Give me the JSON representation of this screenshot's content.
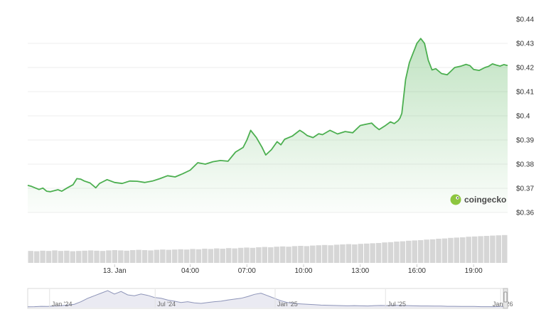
{
  "watermark": {
    "text": "coingecko",
    "icon": "gecko-logo-icon",
    "icon_color": "#8dc63f"
  },
  "colors": {
    "line": "#4caf50",
    "area": "#4caf50",
    "volume": "#d6d6d6",
    "grid": "#eeeeee",
    "navigator_line": "#8d94b8",
    "navigator_fill": "#eaeaf2"
  },
  "chart_data": {
    "type": "area",
    "y_unit": "$",
    "ylim": [
      0.36,
      0.44
    ],
    "y_ticks": [
      "$0.44",
      "$0.43",
      "$0.42",
      "$0.41",
      "$0.4",
      "$0.39",
      "$0.38",
      "$0.37",
      "$0.36"
    ],
    "x_range_hours": [
      -4.6,
      20.8
    ],
    "x_tick_labels": [
      "13. Jan",
      "04:00",
      "07:00",
      "10:00",
      "13:00",
      "16:00",
      "19:00"
    ],
    "x_tick_hours": [
      0,
      4,
      7,
      10,
      13,
      16,
      19
    ],
    "series": [
      {
        "x_hours": [
          -4.6,
          -4.4,
          -4.0,
          -3.8,
          -3.6,
          -3.4,
          -3.2,
          -3.0,
          -2.8,
          -2.5,
          -2.2,
          -2.0,
          -1.8,
          -1.6,
          -1.3,
          -1.0,
          -0.8,
          -0.6,
          -0.4,
          0.0,
          0.4,
          0.8,
          1.2,
          1.6,
          2.0,
          2.4,
          2.8,
          3.2,
          3.6,
          4.0,
          4.4,
          4.8,
          5.2,
          5.6,
          6.0,
          6.4,
          6.8,
          7.0,
          7.2,
          7.5,
          7.8,
          8.0,
          8.3,
          8.6,
          8.8,
          9.0,
          9.4,
          9.8,
          10.0,
          10.2,
          10.5,
          10.8,
          11.0,
          11.4,
          11.8,
          12.2,
          12.6,
          13.0,
          13.3,
          13.6,
          13.8,
          14.0,
          14.3,
          14.6,
          14.8,
          15.0,
          15.1,
          15.2,
          15.4,
          15.6,
          15.8,
          15.9,
          16.0,
          16.2,
          16.4,
          16.6,
          16.8,
          17.0,
          17.3,
          17.6,
          17.8,
          18.0,
          18.3,
          18.6,
          18.8,
          19.0,
          19.3,
          19.6,
          19.8,
          20.0,
          20.2,
          20.4,
          20.6,
          20.8
        ],
        "values": [
          0.3712,
          0.3708,
          0.3695,
          0.3701,
          0.3688,
          0.3686,
          0.369,
          0.3694,
          0.3688,
          0.3702,
          0.3715,
          0.374,
          0.3738,
          0.373,
          0.3722,
          0.3702,
          0.372,
          0.3728,
          0.3736,
          0.3724,
          0.372,
          0.373,
          0.3729,
          0.3724,
          0.373,
          0.374,
          0.3752,
          0.3747,
          0.376,
          0.3775,
          0.3806,
          0.38,
          0.381,
          0.3815,
          0.3812,
          0.385,
          0.3869,
          0.39,
          0.394,
          0.391,
          0.387,
          0.3838,
          0.386,
          0.3893,
          0.388,
          0.3903,
          0.3916,
          0.394,
          0.393,
          0.3918,
          0.391,
          0.3926,
          0.3922,
          0.394,
          0.3925,
          0.3935,
          0.393,
          0.396,
          0.3965,
          0.397,
          0.3955,
          0.3943,
          0.3958,
          0.3975,
          0.3968,
          0.398,
          0.399,
          0.401,
          0.415,
          0.422,
          0.426,
          0.428,
          0.43,
          0.432,
          0.43,
          0.423,
          0.419,
          0.4195,
          0.4175,
          0.417,
          0.4185,
          0.42,
          0.4205,
          0.4213,
          0.4208,
          0.4192,
          0.4188,
          0.42,
          0.4205,
          0.4215,
          0.421,
          0.4206,
          0.4212,
          0.4208
        ]
      }
    ],
    "volume": {
      "values": [
        0.42,
        0.41,
        0.43,
        0.42,
        0.44,
        0.42,
        0.43,
        0.41,
        0.42,
        0.43,
        0.44,
        0.43,
        0.42,
        0.44,
        0.45,
        0.44,
        0.43,
        0.45,
        0.46,
        0.45,
        0.44,
        0.46,
        0.47,
        0.46,
        0.47,
        0.48,
        0.47,
        0.49,
        0.48,
        0.5,
        0.49,
        0.51,
        0.5,
        0.52,
        0.51,
        0.53,
        0.54,
        0.53,
        0.55,
        0.56,
        0.55,
        0.57,
        0.58,
        0.57,
        0.59,
        0.6,
        0.59,
        0.61,
        0.62,
        0.63,
        0.62,
        0.64,
        0.65,
        0.66,
        0.65,
        0.67,
        0.68,
        0.69,
        0.7,
        0.72,
        0.73,
        0.75,
        0.76,
        0.78,
        0.79,
        0.8,
        0.82,
        0.83,
        0.85,
        0.86,
        0.88,
        0.89,
        0.9,
        0.92,
        0.93,
        0.94,
        0.95,
        0.96,
        0.97,
        0.98
      ]
    },
    "navigator": {
      "labels": [
        "Jan '24",
        "Jul '24",
        "Jan '25",
        "Jul '25",
        "Jan '26"
      ],
      "label_positions": [
        0.05,
        0.27,
        0.52,
        0.75,
        0.99
      ],
      "values": [
        0.05,
        0.06,
        0.08,
        0.07,
        0.1,
        0.12,
        0.15,
        0.2,
        0.35,
        0.55,
        0.7,
        0.85,
        1.0,
        0.8,
        0.95,
        0.75,
        0.7,
        0.8,
        0.72,
        0.6,
        0.55,
        0.45,
        0.38,
        0.3,
        0.35,
        0.28,
        0.25,
        0.3,
        0.35,
        0.38,
        0.45,
        0.5,
        0.55,
        0.65,
        0.78,
        0.85,
        0.7,
        0.55,
        0.4,
        0.3,
        0.25,
        0.22,
        0.2,
        0.18,
        0.15,
        0.14,
        0.13,
        0.12,
        0.11,
        0.12,
        0.11,
        0.1,
        0.12,
        0.13,
        0.12,
        0.14,
        0.13,
        0.12,
        0.11,
        0.1,
        0.1,
        0.09,
        0.09,
        0.08,
        0.08,
        0.07,
        0.07,
        0.07,
        0.06,
        0.06,
        0.06,
        0.07,
        0.06
      ]
    }
  }
}
